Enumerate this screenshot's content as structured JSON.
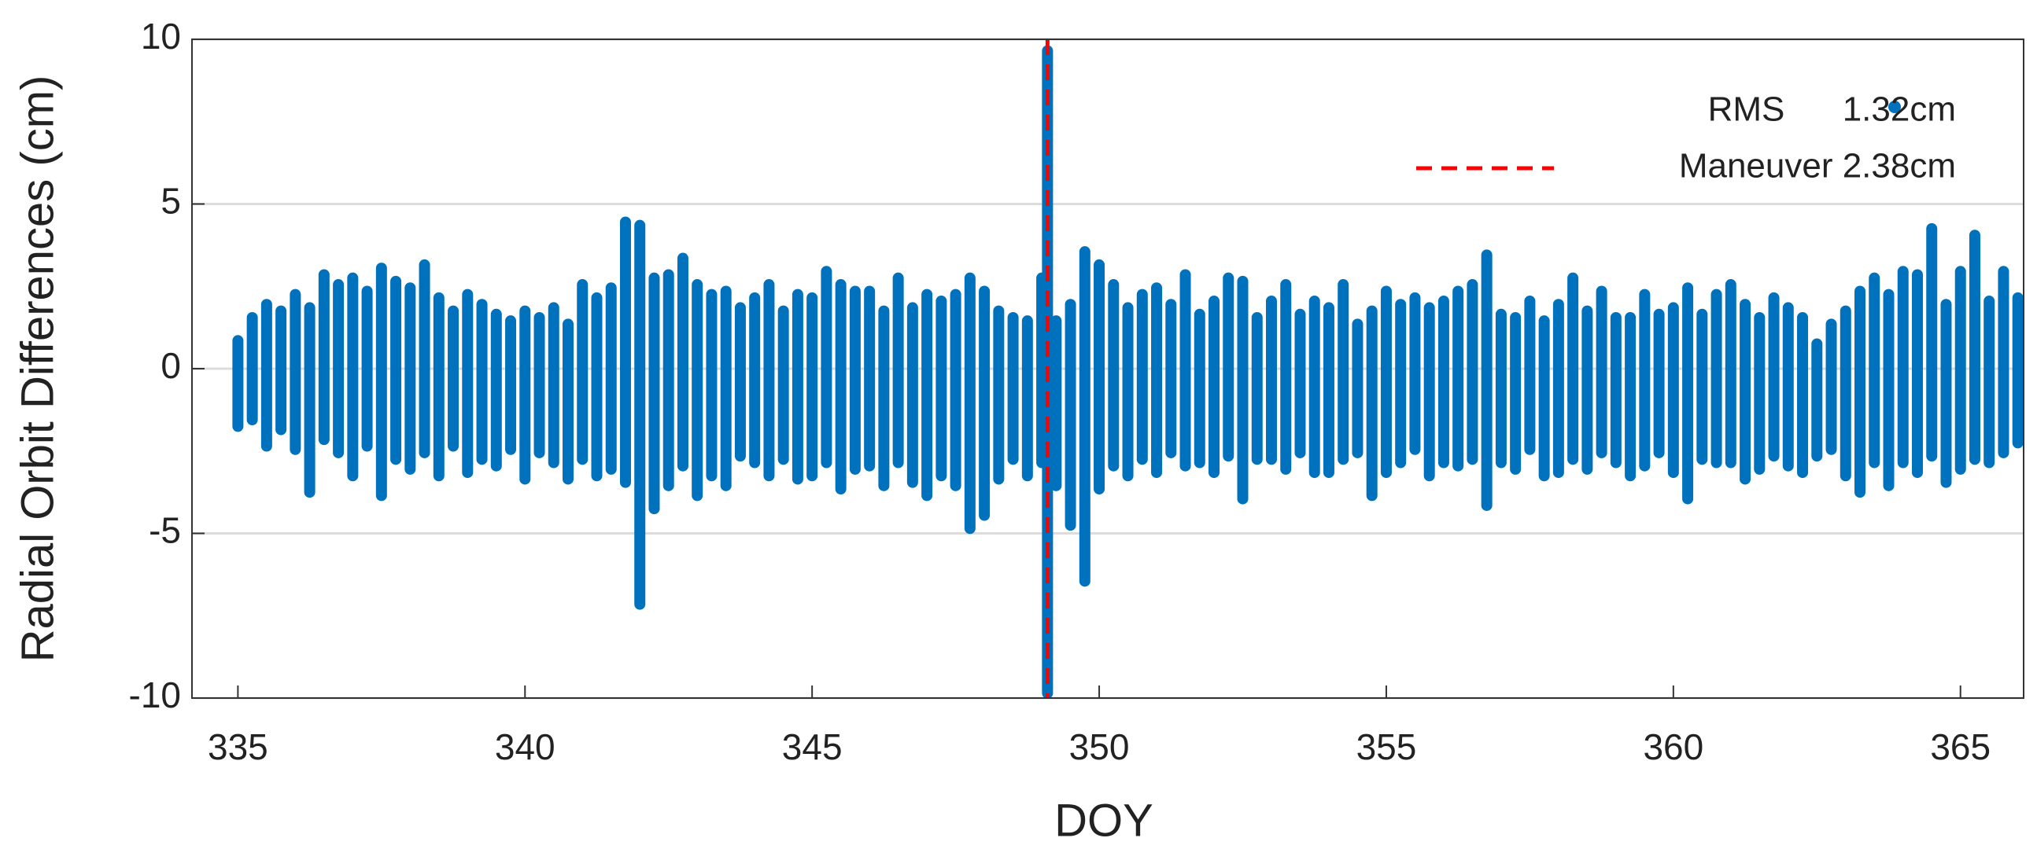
{
  "chart_data": {
    "type": "range",
    "xlabel": "DOY",
    "ylabel": "Radial Orbit Differences (cm)",
    "xlim": [
      334.2,
      366.1
    ],
    "xticks": [
      335,
      340,
      345,
      350,
      355,
      360,
      365
    ],
    "ylim": [
      -10,
      10
    ],
    "yticks": [
      -10,
      -5,
      0,
      5,
      10
    ],
    "grid": true,
    "legend": "upper right",
    "series": [
      {
        "name": "RMS      1.32cm",
        "color": "#0072bd",
        "x": [
          335,
          335.25,
          335.5,
          335.75,
          336,
          336.25,
          336.5,
          336.75,
          337,
          337.25,
          337.5,
          337.75,
          338,
          338.25,
          338.5,
          338.75,
          339,
          339.25,
          339.5,
          339.75,
          340,
          340.25,
          340.5,
          340.75,
          341,
          341.25,
          341.5,
          341.75,
          342,
          342.25,
          342.5,
          342.75,
          343,
          343.25,
          343.5,
          343.75,
          344,
          344.25,
          344.5,
          344.75,
          345,
          345.25,
          345.5,
          345.75,
          346,
          346.25,
          346.5,
          346.75,
          347,
          347.25,
          347.5,
          347.75,
          348,
          348.25,
          348.5,
          348.75,
          349,
          349.1,
          349.25,
          349.5,
          349.75,
          350,
          350.25,
          350.5,
          350.75,
          351,
          351.25,
          351.5,
          351.75,
          352,
          352.25,
          352.5,
          352.75,
          353,
          353.25,
          353.5,
          353.75,
          354,
          354.25,
          354.5,
          354.75,
          355,
          355.25,
          355.5,
          355.75,
          356,
          356.25,
          356.5,
          356.75,
          357,
          357.25,
          357.5,
          357.75,
          358,
          358.25,
          358.5,
          358.75,
          359,
          359.25,
          359.5,
          359.75,
          360,
          360.25,
          360.5,
          360.75,
          361,
          361.25,
          361.5,
          361.75,
          362,
          362.25,
          362.5,
          362.75,
          363,
          363.25,
          363.5,
          363.75,
          364,
          364.25,
          364.5,
          364.75,
          365,
          365.25,
          365.5,
          365.75,
          366
        ],
        "high": [
          0.9,
          1.6,
          2.0,
          1.8,
          2.3,
          1.9,
          2.9,
          2.6,
          2.8,
          2.4,
          3.1,
          2.7,
          2.5,
          3.2,
          2.2,
          1.8,
          2.3,
          2.0,
          1.7,
          1.5,
          1.8,
          1.6,
          1.9,
          1.4,
          2.6,
          2.2,
          2.5,
          4.5,
          4.4,
          2.8,
          2.9,
          3.4,
          2.6,
          2.3,
          2.4,
          1.9,
          2.2,
          2.6,
          1.8,
          2.3,
          2.2,
          3.0,
          2.6,
          2.4,
          2.4,
          1.8,
          2.8,
          1.9,
          2.3,
          2.1,
          2.3,
          2.8,
          2.4,
          1.8,
          1.6,
          1.5,
          2.8,
          9.7,
          1.5,
          2.0,
          3.6,
          3.2,
          2.6,
          1.9,
          2.3,
          2.5,
          2.0,
          2.9,
          1.7,
          2.1,
          2.8,
          2.7,
          1.6,
          2.1,
          2.6,
          1.7,
          2.1,
          1.9,
          2.6,
          1.4,
          1.8,
          2.4,
          2.0,
          2.2,
          1.9,
          2.1,
          2.4,
          2.6,
          3.5,
          1.7,
          1.6,
          2.1,
          1.5,
          2.0,
          2.8,
          1.8,
          2.4,
          1.6,
          1.6,
          2.3,
          1.7,
          1.9,
          2.5,
          1.7,
          2.3,
          2.6,
          2.0,
          1.6,
          2.2,
          1.9,
          1.6,
          0.8,
          1.4,
          1.8,
          2.4,
          2.8,
          2.3,
          3.0,
          2.9,
          4.3,
          2.0,
          3.0,
          4.1,
          2.1,
          3.0,
          2.2
        ],
        "low": [
          -1.8,
          -1.6,
          -2.4,
          -1.9,
          -2.5,
          -3.8,
          -2.2,
          -2.6,
          -3.3,
          -2.4,
          -3.9,
          -2.8,
          -3.1,
          -2.6,
          -3.3,
          -2.4,
          -3.2,
          -2.8,
          -3.0,
          -2.5,
          -3.4,
          -2.6,
          -2.9,
          -3.4,
          -2.8,
          -3.3,
          -3.1,
          -3.5,
          -7.2,
          -4.3,
          -3.6,
          -3.0,
          -3.9,
          -3.3,
          -3.6,
          -2.7,
          -2.9,
          -3.3,
          -2.8,
          -3.4,
          -3.3,
          -2.9,
          -3.7,
          -3.1,
          -3.0,
          -3.6,
          -2.9,
          -3.5,
          -3.9,
          -3.3,
          -3.6,
          -4.9,
          -4.5,
          -3.4,
          -2.8,
          -3.3,
          -2.9,
          -9.9,
          -3.6,
          -4.8,
          -6.5,
          -3.7,
          -3.0,
          -3.3,
          -2.8,
          -3.2,
          -2.6,
          -3.0,
          -2.9,
          -3.2,
          -2.7,
          -4.0,
          -2.8,
          -2.8,
          -3.1,
          -2.6,
          -3.2,
          -3.2,
          -2.8,
          -2.6,
          -3.9,
          -3.2,
          -2.9,
          -2.5,
          -3.3,
          -2.9,
          -3.0,
          -2.8,
          -4.2,
          -2.9,
          -3.1,
          -2.5,
          -3.3,
          -3.2,
          -2.8,
          -3.1,
          -2.6,
          -2.9,
          -3.3,
          -3.0,
          -2.6,
          -3.2,
          -4.0,
          -2.8,
          -2.9,
          -2.9,
          -3.4,
          -3.1,
          -2.7,
          -3.0,
          -3.2,
          -2.7,
          -2.5,
          -3.3,
          -3.8,
          -2.9,
          -3.6,
          -2.9,
          -3.2,
          -2.7,
          -3.5,
          -3.1,
          -2.8,
          -2.9,
          -2.6,
          -2.3
        ]
      },
      {
        "name": "Maneuver 2.38cm",
        "color": "#ff0000",
        "x": 349.1
      }
    ]
  }
}
